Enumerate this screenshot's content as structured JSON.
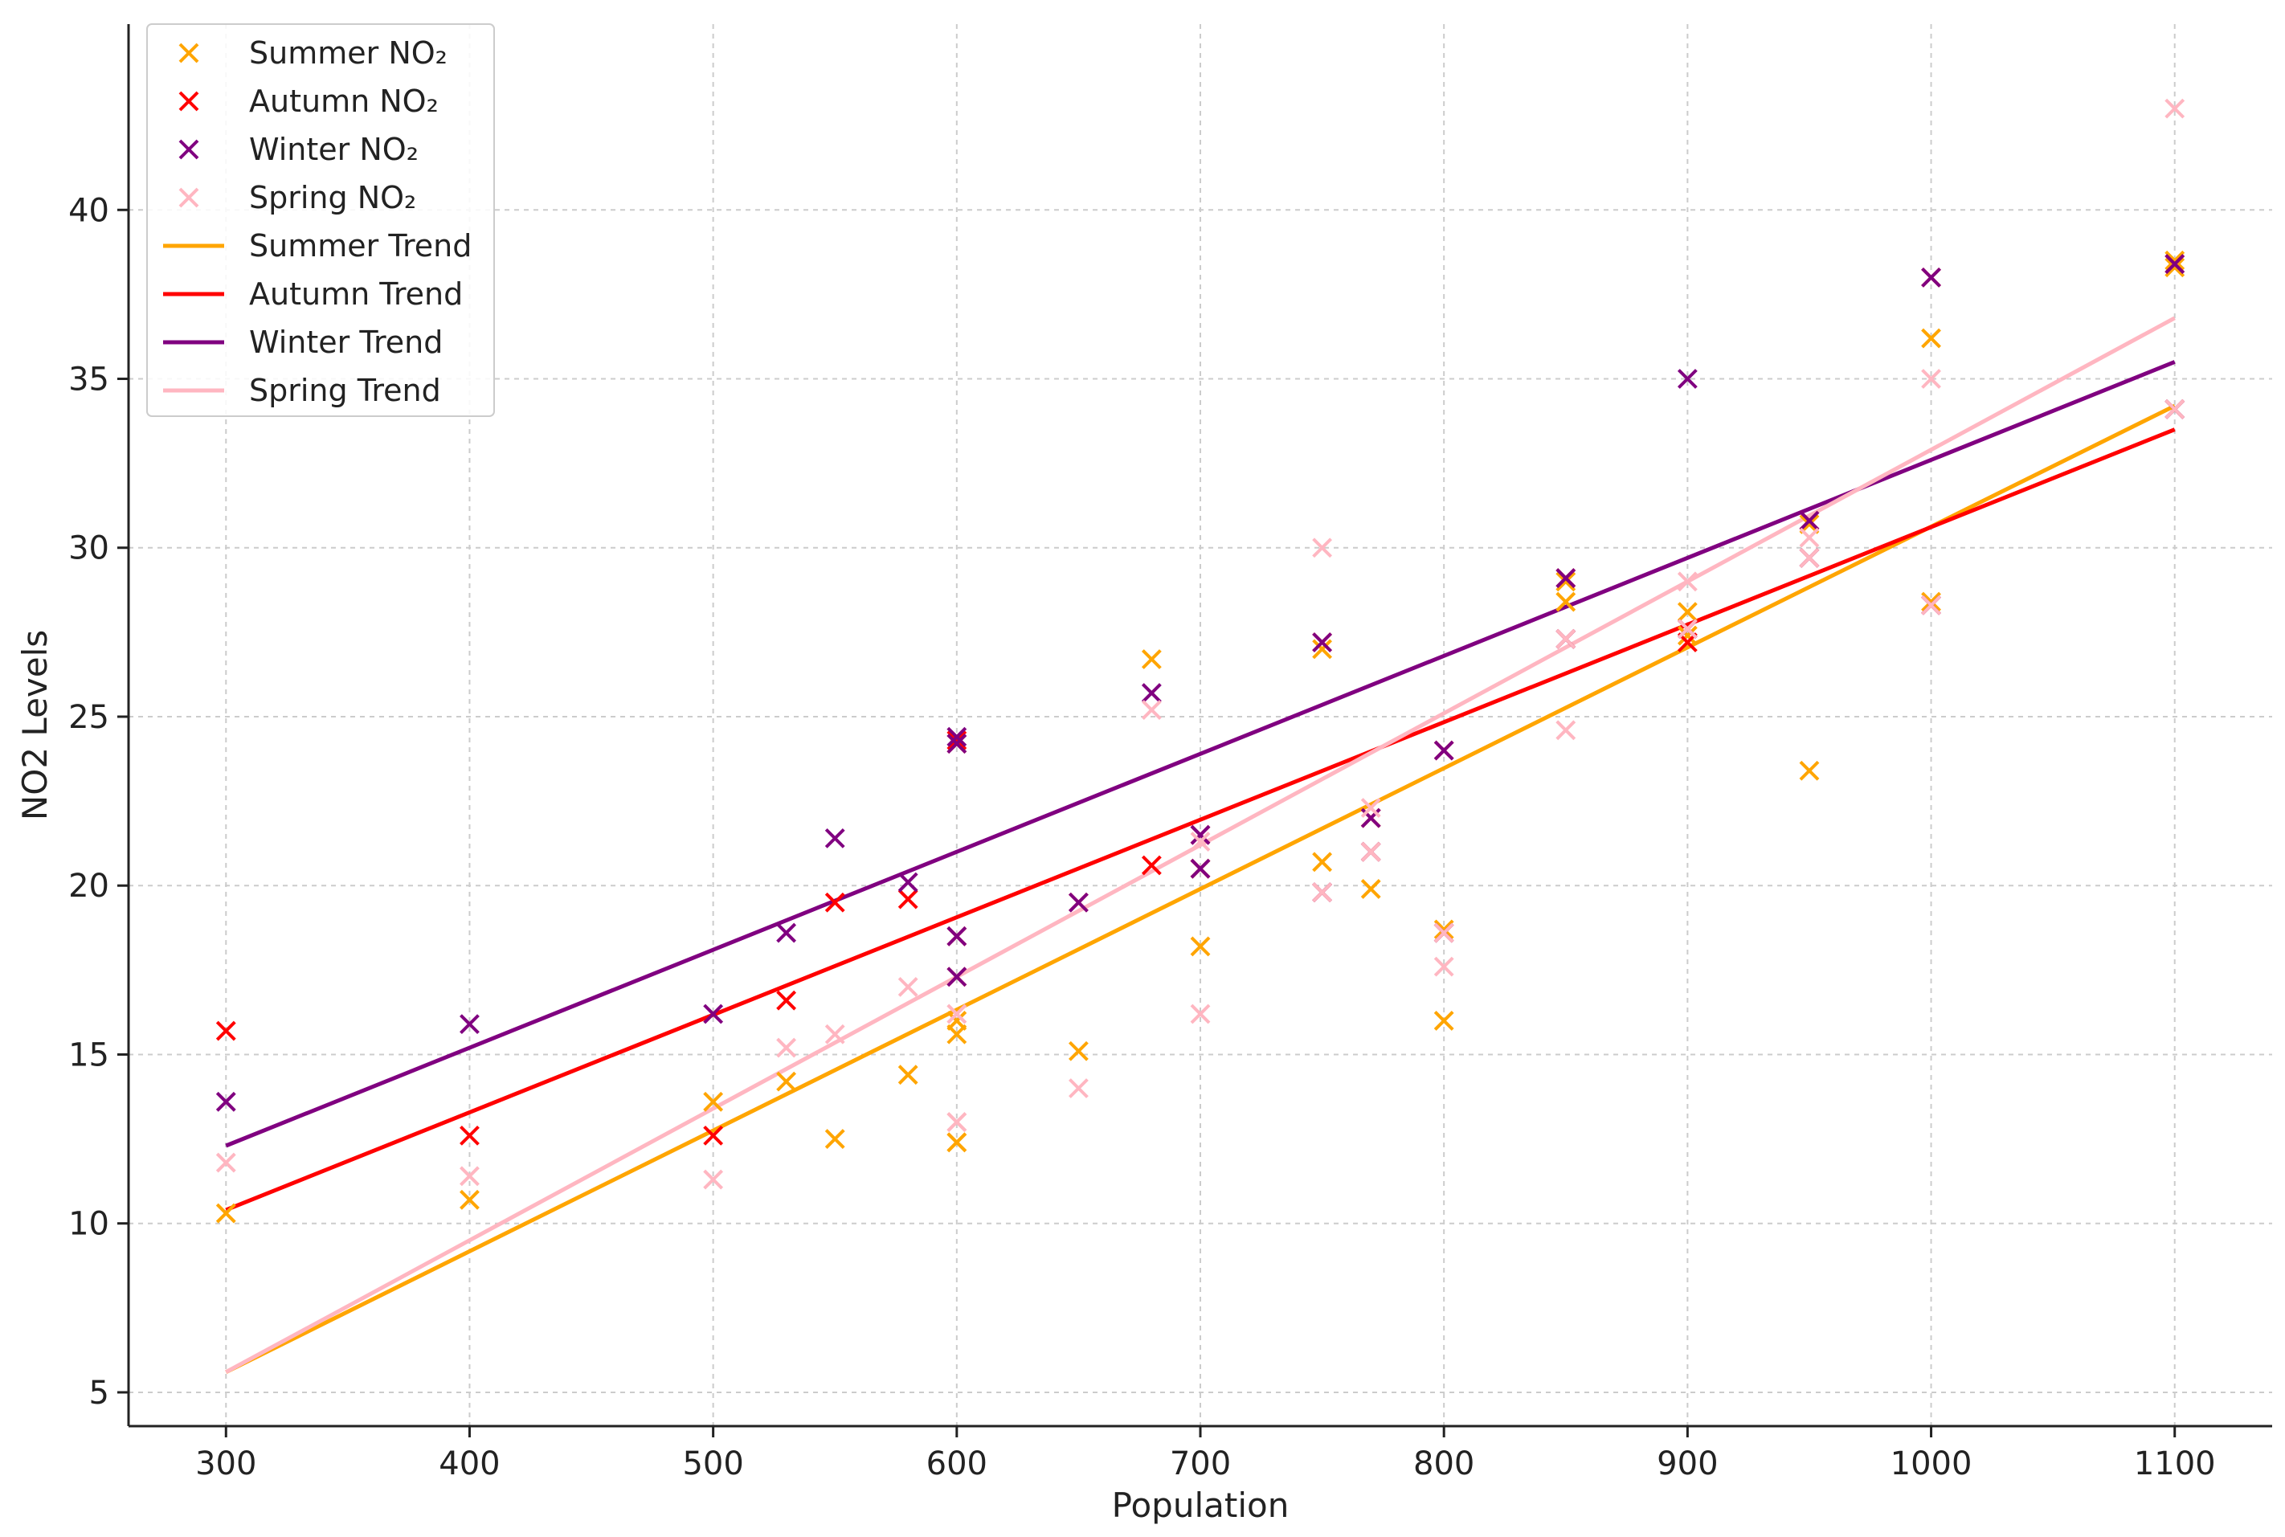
{
  "chart_data": {
    "type": "scatter",
    "title": "",
    "xlabel": "Population",
    "ylabel": "NO2 Levels",
    "xlim": [
      260,
      1140
    ],
    "ylim": [
      4,
      45.5
    ],
    "xticks": [
      300,
      400,
      500,
      600,
      700,
      800,
      900,
      1000,
      1100
    ],
    "yticks": [
      5,
      10,
      15,
      20,
      25,
      30,
      35,
      40
    ],
    "grid": true,
    "legend_position": "top-left",
    "marker": "x",
    "x": [
      300,
      400,
      500,
      530,
      550,
      580,
      600,
      600,
      600,
      600,
      650,
      680,
      700,
      700,
      750,
      750,
      770,
      770,
      800,
      800,
      850,
      850,
      900,
      900,
      950,
      950,
      1000,
      1000,
      1100,
      1100
    ],
    "series": [
      {
        "name": "Summer NO₂",
        "color": "#FFA500",
        "values": [
          10.3,
          10.7,
          13.6,
          14.2,
          12.5,
          14.4,
          12.4,
          15.6,
          16.0,
          12.4,
          15.1,
          26.7,
          18.2,
          20.5,
          20.7,
          27.0,
          19.9,
          22.0,
          16.0,
          18.7,
          28.4,
          29.0,
          28.1,
          27.4,
          23.4,
          30.7,
          36.2,
          28.4,
          38.3,
          38.5
        ]
      },
      {
        "name": "Autumn NO₂",
        "color": "#FF0000",
        "values": [
          15.7,
          12.6,
          12.6,
          16.6,
          19.5,
          19.6,
          18.5,
          17.3,
          24.3,
          24.2,
          19.5,
          20.6,
          20.5,
          21.5,
          27.2,
          19.8,
          22.0,
          21.0,
          18.6,
          24.0,
          27.3,
          29.1,
          27.6,
          27.2,
          30.8,
          29.7,
          28.3,
          38.0,
          38.4,
          34.1
        ]
      },
      {
        "name": "Winter NO₂",
        "color": "#800080",
        "values": [
          13.6,
          15.9,
          16.2,
          18.6,
          21.4,
          20.1,
          24.4,
          24.2,
          17.3,
          18.5,
          19.5,
          25.7,
          21.5,
          20.5,
          19.8,
          27.2,
          21.0,
          22.0,
          24.0,
          18.6,
          29.1,
          27.3,
          35.0,
          27.6,
          29.7,
          30.8,
          38.0,
          28.3,
          34.1,
          38.4
        ]
      },
      {
        "name": "Spring NO₂",
        "color": "#FFB6C1",
        "values": [
          11.8,
          11.4,
          11.3,
          15.2,
          15.6,
          17.0,
          13.0,
          16.2,
          13.0,
          16.2,
          14.0,
          25.2,
          16.2,
          21.3,
          30.0,
          19.8,
          22.3,
          21.0,
          17.6,
          18.6,
          24.6,
          27.3,
          29.0,
          27.6,
          30.3,
          29.7,
          35.0,
          28.3,
          43.0,
          34.1
        ]
      }
    ],
    "trend_lines": [
      {
        "name": "Summer Trend",
        "color": "#FFA500",
        "x": [
          300,
          1100
        ],
        "y": [
          5.6,
          34.2
        ]
      },
      {
        "name": "Autumn Trend",
        "color": "#FF0000",
        "x": [
          300,
          1100
        ],
        "y": [
          10.4,
          33.5
        ]
      },
      {
        "name": "Winter Trend",
        "color": "#800080",
        "x": [
          300,
          1100
        ],
        "y": [
          12.3,
          35.5
        ]
      },
      {
        "name": "Spring Trend",
        "color": "#FFB6C1",
        "x": [
          300,
          1100
        ],
        "y": [
          5.6,
          36.8
        ]
      }
    ]
  }
}
